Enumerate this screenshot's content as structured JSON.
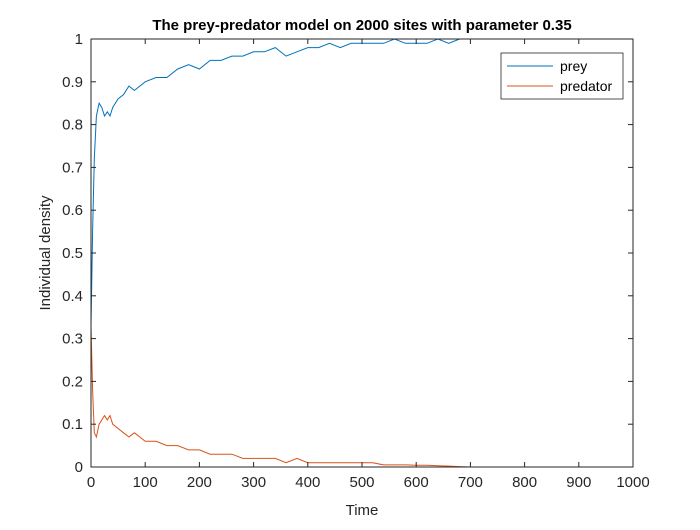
{
  "chart_data": {
    "type": "line",
    "title": "The prey-predator model on 2000 sites with parameter 0.35",
    "xlabel": "Time",
    "ylabel": "Individual density",
    "xlim": [
      0,
      1000
    ],
    "ylim": [
      0,
      1
    ],
    "xticks": [
      0,
      100,
      200,
      300,
      400,
      500,
      600,
      700,
      800,
      900,
      1000
    ],
    "yticks": [
      0,
      0.1,
      0.2,
      0.3,
      0.4,
      0.5,
      0.6,
      0.7,
      0.8,
      0.9,
      1
    ],
    "xtick_labels": [
      "0",
      "100",
      "200",
      "300",
      "400",
      "500",
      "600",
      "700",
      "800",
      "900",
      "1000"
    ],
    "ytick_labels": [
      "0",
      "0.1",
      "0.2",
      "0.3",
      "0.4",
      "0.5",
      "0.6",
      "0.7",
      "0.8",
      "0.9",
      "1"
    ],
    "grid": false,
    "legend_position": "top-right",
    "series": [
      {
        "name": "prey",
        "color": "#0072BD",
        "x": [
          0,
          3,
          6,
          10,
          15,
          20,
          25,
          30,
          35,
          40,
          50,
          60,
          70,
          80,
          90,
          100,
          120,
          140,
          160,
          180,
          200,
          220,
          240,
          260,
          280,
          300,
          320,
          340,
          360,
          380,
          400,
          420,
          440,
          460,
          480,
          500,
          520,
          540,
          560,
          580,
          600,
          620,
          640,
          660,
          680,
          700,
          720,
          740,
          760,
          800,
          850,
          900,
          950,
          1000
        ],
        "y": [
          0.33,
          0.55,
          0.72,
          0.82,
          0.85,
          0.84,
          0.82,
          0.83,
          0.82,
          0.84,
          0.86,
          0.87,
          0.89,
          0.88,
          0.89,
          0.9,
          0.91,
          0.91,
          0.93,
          0.94,
          0.93,
          0.95,
          0.95,
          0.96,
          0.96,
          0.97,
          0.97,
          0.98,
          0.96,
          0.97,
          0.98,
          0.98,
          0.99,
          0.98,
          0.99,
          0.99,
          0.99,
          0.99,
          1.0,
          0.99,
          0.99,
          0.99,
          1.0,
          0.99,
          1.0,
          1.0,
          1.0,
          1.0,
          1.0,
          1.0,
          1.0,
          1.0,
          1.0,
          1.0
        ]
      },
      {
        "name": "predator",
        "color": "#D95319",
        "x": [
          0,
          3,
          6,
          10,
          15,
          20,
          25,
          30,
          35,
          40,
          50,
          60,
          70,
          80,
          90,
          100,
          120,
          140,
          160,
          180,
          200,
          220,
          240,
          260,
          280,
          300,
          320,
          340,
          360,
          380,
          400,
          420,
          440,
          460,
          480,
          500,
          520,
          540,
          560,
          580,
          600,
          620,
          640,
          660,
          680,
          700,
          750,
          800,
          850,
          900,
          950,
          1000
        ],
        "y": [
          0.33,
          0.18,
          0.08,
          0.07,
          0.1,
          0.11,
          0.12,
          0.11,
          0.12,
          0.1,
          0.09,
          0.08,
          0.07,
          0.08,
          0.07,
          0.06,
          0.06,
          0.05,
          0.05,
          0.04,
          0.04,
          0.03,
          0.03,
          0.03,
          0.02,
          0.02,
          0.02,
          0.02,
          0.01,
          0.02,
          0.01,
          0.01,
          0.01,
          0.01,
          0.01,
          0.01,
          0.01,
          0.005,
          0.005,
          0.005,
          0.004,
          0.004,
          0.003,
          0.002,
          0.001,
          0.0,
          0.0,
          0.0,
          0.0,
          0.0,
          0.0,
          0.0
        ]
      }
    ]
  }
}
